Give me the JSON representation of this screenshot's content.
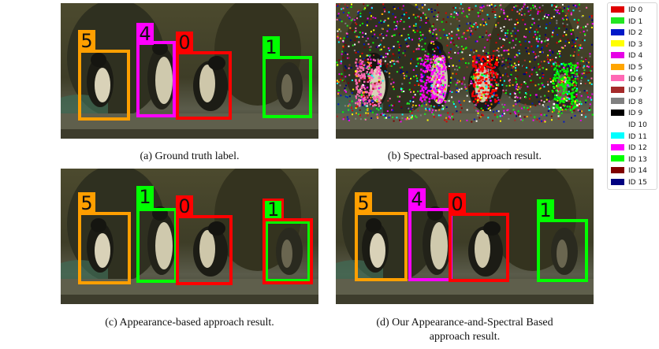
{
  "panels": [
    {
      "label": "(a) Ground truth label.",
      "boxes": [
        {
          "id": "5",
          "color": "#FF9F00"
        },
        {
          "id": "4",
          "color": "#FF00FF"
        },
        {
          "id": "0",
          "color": "#FF0000"
        },
        {
          "id": "1",
          "color": "#00FF00"
        }
      ]
    },
    {
      "label": "(b) Spectral-based approach result.",
      "boxes": []
    },
    {
      "label": "(c) Appearance-based approach result.",
      "boxes": [
        {
          "id": "5",
          "color": "#FF9F00"
        },
        {
          "id": "1",
          "color": "#00FF00"
        },
        {
          "id": "0",
          "color": "#FF0000"
        },
        {
          "id": "1",
          "color": "#FF0000"
        }
      ]
    },
    {
      "label_line1": "(d) Our Appearance-and-Spectral Based",
      "label_line2": "approach result.",
      "boxes": [
        {
          "id": "5",
          "color": "#FF9F00"
        },
        {
          "id": "4",
          "color": "#FF00FF"
        },
        {
          "id": "0",
          "color": "#FF0000"
        },
        {
          "id": "1",
          "color": "#00FF00"
        }
      ]
    }
  ],
  "legend": [
    {
      "label": "ID 0",
      "color": "#E00000"
    },
    {
      "label": "ID 1",
      "color": "#22E622"
    },
    {
      "label": "ID 2",
      "color": "#0018C8"
    },
    {
      "label": "ID 3",
      "color": "#FFFF00"
    },
    {
      "label": "ID 4",
      "color": "#E600E6"
    },
    {
      "label": "ID 5",
      "color": "#FFA500"
    },
    {
      "label": "ID 6",
      "color": "#FF69B4"
    },
    {
      "label": "ID 7",
      "color": "#A52A2A"
    },
    {
      "label": "ID 8",
      "color": "#808080"
    },
    {
      "label": "ID 9",
      "color": "#000000"
    },
    {
      "label": "ID 10",
      "color": "#FFFFFF"
    },
    {
      "label": "ID 11",
      "color": "#00FFFF"
    },
    {
      "label": "ID 12",
      "color": "#FF00FF"
    },
    {
      "label": "ID 13",
      "color": "#00FF00"
    },
    {
      "label": "ID 14",
      "color": "#800000"
    },
    {
      "label": "ID 15",
      "color": "#000080"
    }
  ]
}
